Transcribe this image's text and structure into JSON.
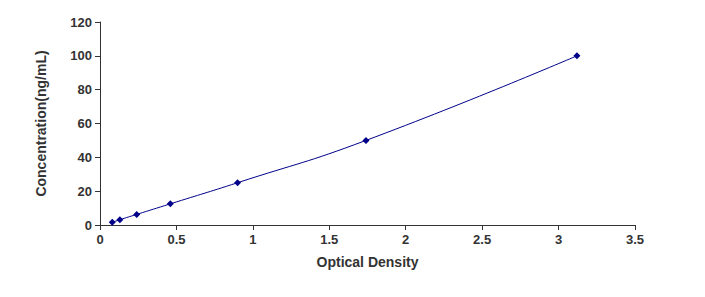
{
  "chart_data": {
    "type": "line",
    "x_label": "Optical Density",
    "y_label": "Concentration(ng/mL)",
    "x": [
      0.08,
      0.13,
      0.24,
      0.46,
      0.9,
      1.74,
      3.12
    ],
    "values": [
      1.56,
      3.12,
      6.25,
      12.5,
      25,
      50,
      100
    ],
    "color": "#00008b",
    "marker": "diamond",
    "line_style": "solid",
    "xlim": [
      0,
      3.5
    ],
    "xticks": [
      0,
      0.5,
      1,
      1.5,
      2,
      2.5,
      3,
      3.5
    ],
    "ylim": [
      0,
      120
    ],
    "yticks": [
      0,
      20,
      40,
      60,
      80,
      100,
      120
    ],
    "grid": false
  }
}
